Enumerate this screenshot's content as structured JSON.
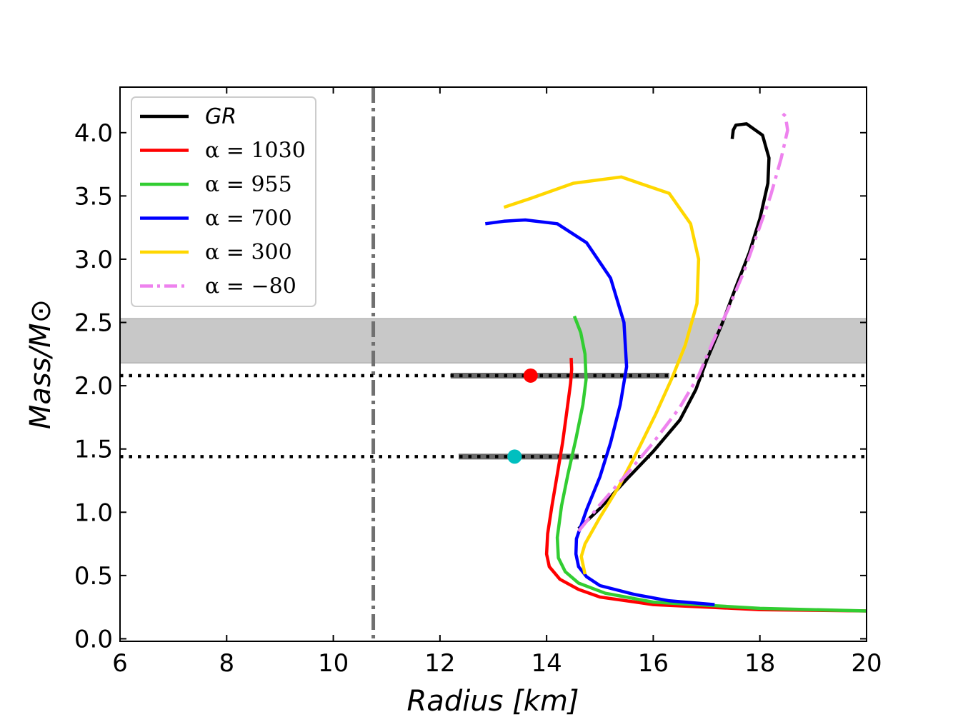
{
  "chart_data": {
    "type": "line",
    "xlabel": "Radius [km]",
    "ylabel": "Mass/M⊙",
    "xlim": [
      6,
      20
    ],
    "ylim": [
      -0.02,
      4.36
    ],
    "xticks": [
      "6",
      "8",
      "10",
      "12",
      "14",
      "16",
      "18",
      "20"
    ],
    "yticks": [
      "0.0",
      "0.5",
      "1.0",
      "1.5",
      "2.0",
      "2.5",
      "3.0",
      "3.5",
      "4.0"
    ],
    "legend_position": "top-left",
    "series": [
      {
        "name": "GR",
        "color": "#000000",
        "style": "solid",
        "points": [
          [
            14.6,
            0.87
          ],
          [
            15.0,
            1.03
          ],
          [
            15.5,
            1.26
          ],
          [
            16.0,
            1.48
          ],
          [
            16.5,
            1.73
          ],
          [
            16.8,
            1.97
          ],
          [
            17.0,
            2.2
          ],
          [
            17.3,
            2.5
          ],
          [
            17.55,
            2.78
          ],
          [
            17.8,
            3.05
          ],
          [
            18.0,
            3.32
          ],
          [
            18.15,
            3.6
          ],
          [
            18.17,
            3.8
          ],
          [
            18.05,
            3.98
          ],
          [
            17.75,
            4.07
          ],
          [
            17.55,
            4.06
          ],
          [
            17.5,
            4.02
          ],
          [
            17.48,
            3.95
          ]
        ]
      },
      {
        "name": "α = 1030",
        "color": "#ff0000",
        "style": "solid",
        "points": [
          [
            20.0,
            0.22
          ],
          [
            18.0,
            0.23
          ],
          [
            16.0,
            0.27
          ],
          [
            15.0,
            0.33
          ],
          [
            14.6,
            0.39
          ],
          [
            14.25,
            0.47
          ],
          [
            14.05,
            0.57
          ],
          [
            14.0,
            0.67
          ],
          [
            14.02,
            0.83
          ],
          [
            14.1,
            1.05
          ],
          [
            14.2,
            1.3
          ],
          [
            14.3,
            1.55
          ],
          [
            14.38,
            1.8
          ],
          [
            14.45,
            2.02
          ],
          [
            14.47,
            2.13
          ],
          [
            14.46,
            2.22
          ]
        ]
      },
      {
        "name": "α = 955",
        "color": "#32cd32",
        "style": "solid",
        "points": [
          [
            20.0,
            0.22
          ],
          [
            18.0,
            0.24
          ],
          [
            16.0,
            0.29
          ],
          [
            15.1,
            0.36
          ],
          [
            14.6,
            0.44
          ],
          [
            14.35,
            0.53
          ],
          [
            14.22,
            0.64
          ],
          [
            14.2,
            0.8
          ],
          [
            14.28,
            1.05
          ],
          [
            14.4,
            1.3
          ],
          [
            14.55,
            1.58
          ],
          [
            14.68,
            1.85
          ],
          [
            14.74,
            2.05
          ],
          [
            14.72,
            2.25
          ],
          [
            14.64,
            2.42
          ],
          [
            14.52,
            2.55
          ]
        ]
      },
      {
        "name": "α = 700",
        "color": "#0000ff",
        "style": "solid",
        "points": [
          [
            17.15,
            0.27
          ],
          [
            16.3,
            0.3
          ],
          [
            15.65,
            0.35
          ],
          [
            15.0,
            0.42
          ],
          [
            14.75,
            0.49
          ],
          [
            14.6,
            0.57
          ],
          [
            14.55,
            0.67
          ],
          [
            14.56,
            0.79
          ],
          [
            14.75,
            1.02
          ],
          [
            15.0,
            1.28
          ],
          [
            15.2,
            1.55
          ],
          [
            15.38,
            1.85
          ],
          [
            15.5,
            2.15
          ],
          [
            15.45,
            2.5
          ],
          [
            15.2,
            2.85
          ],
          [
            14.75,
            3.13
          ],
          [
            14.2,
            3.28
          ],
          [
            13.6,
            3.31
          ],
          [
            13.2,
            3.3
          ],
          [
            12.85,
            3.28
          ]
        ]
      },
      {
        "name": "α = 300",
        "color": "#ffd700",
        "style": "solid",
        "points": [
          [
            14.72,
            0.51
          ],
          [
            14.68,
            0.59
          ],
          [
            14.65,
            0.65
          ],
          [
            14.72,
            0.75
          ],
          [
            15.0,
            0.96
          ],
          [
            15.35,
            1.2
          ],
          [
            15.7,
            1.48
          ],
          [
            16.05,
            1.78
          ],
          [
            16.35,
            2.06
          ],
          [
            16.6,
            2.32
          ],
          [
            16.82,
            2.65
          ],
          [
            16.85,
            3.0
          ],
          [
            16.7,
            3.28
          ],
          [
            16.3,
            3.52
          ],
          [
            15.4,
            3.65
          ],
          [
            14.5,
            3.6
          ],
          [
            13.7,
            3.48
          ],
          [
            13.2,
            3.41
          ]
        ]
      },
      {
        "name": "α = −80",
        "color": "#ee82ee",
        "style": "dashdot",
        "points": [
          [
            14.6,
            0.85
          ],
          [
            15.0,
            1.06
          ],
          [
            15.5,
            1.3
          ],
          [
            16.0,
            1.55
          ],
          [
            16.5,
            1.83
          ],
          [
            16.85,
            2.08
          ],
          [
            17.1,
            2.33
          ],
          [
            17.4,
            2.6
          ],
          [
            17.7,
            2.9
          ],
          [
            17.95,
            3.2
          ],
          [
            18.2,
            3.5
          ],
          [
            18.4,
            3.8
          ],
          [
            18.52,
            4.02
          ],
          [
            18.48,
            4.13
          ],
          [
            18.38,
            4.17
          ]
        ]
      }
    ],
    "annotations": {
      "shaded_band": {
        "y_min": 2.18,
        "y_max": 2.53,
        "color": "#c8c8c8"
      },
      "hlines_dotted": [
        2.08,
        1.44
      ],
      "vline_dashdot": 10.75,
      "measurements": [
        {
          "x": 13.7,
          "y": 2.08,
          "x_err_low": 12.2,
          "x_err_high": 16.3,
          "color": "#ff0000"
        },
        {
          "x": 13.4,
          "y": 1.44,
          "x_err_low": 12.35,
          "x_err_high": 14.6,
          "color": "#00bfbf"
        }
      ]
    }
  }
}
